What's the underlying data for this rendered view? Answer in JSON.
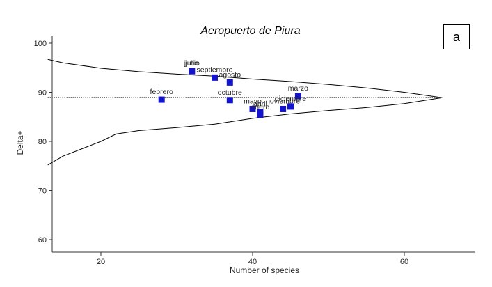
{
  "panel_label": "a",
  "chart_data": {
    "type": "scatter",
    "title": "Aeropuerto de Piura",
    "xlabel": "Number of species",
    "ylabel": "Delta+",
    "xlim": [
      13,
      69
    ],
    "ylim": [
      58,
      101
    ],
    "xticks": [
      20,
      40,
      60
    ],
    "yticks": [
      60,
      70,
      80,
      90,
      100
    ],
    "grid": false,
    "colors": {
      "title": "#1d1da8",
      "points": "#1414cc",
      "axis": "#333333",
      "funnel": "#000000"
    },
    "mean_line": {
      "y": 89,
      "style": "dotted"
    },
    "funnel_upper": {
      "x": [
        13,
        15,
        20,
        25,
        30,
        35,
        40,
        45,
        50,
        55,
        60,
        65
      ],
      "y": [
        96.7,
        96.0,
        94.9,
        94.2,
        93.7,
        93.3,
        92.7,
        92.2,
        91.6,
        90.9,
        90.0,
        88.9
      ]
    },
    "funnel_lower": {
      "x": [
        13,
        15,
        18,
        20,
        22,
        25,
        30,
        35,
        40,
        45,
        50,
        55,
        60,
        65
      ],
      "y": [
        75.2,
        77.0,
        78.8,
        80.0,
        81.5,
        82.2,
        82.8,
        83.5,
        84.7,
        85.6,
        86.3,
        86.9,
        87.7,
        88.9
      ]
    },
    "points": [
      {
        "label": "junio",
        "x": 32,
        "y": 94.3
      },
      {
        "label": "julio",
        "x": 32,
        "y": 94.3
      },
      {
        "label": "septiembre",
        "x": 35,
        "y": 93.0
      },
      {
        "label": "agosto",
        "x": 37,
        "y": 92.0
      },
      {
        "label": "febrero",
        "x": 28,
        "y": 88.5
      },
      {
        "label": "octubre",
        "x": 37,
        "y": 88.4
      },
      {
        "label": "marzo",
        "x": 46,
        "y": 89.2
      },
      {
        "label": "diciembre",
        "x": 45,
        "y": 87.1
      },
      {
        "label": "noviembre",
        "x": 44,
        "y": 86.6
      },
      {
        "label": "mayo",
        "x": 40,
        "y": 86.6
      },
      {
        "label": "abril",
        "x": 41,
        "y": 86.0
      },
      {
        "label": "enero",
        "x": 41,
        "y": 85.4
      }
    ]
  }
}
